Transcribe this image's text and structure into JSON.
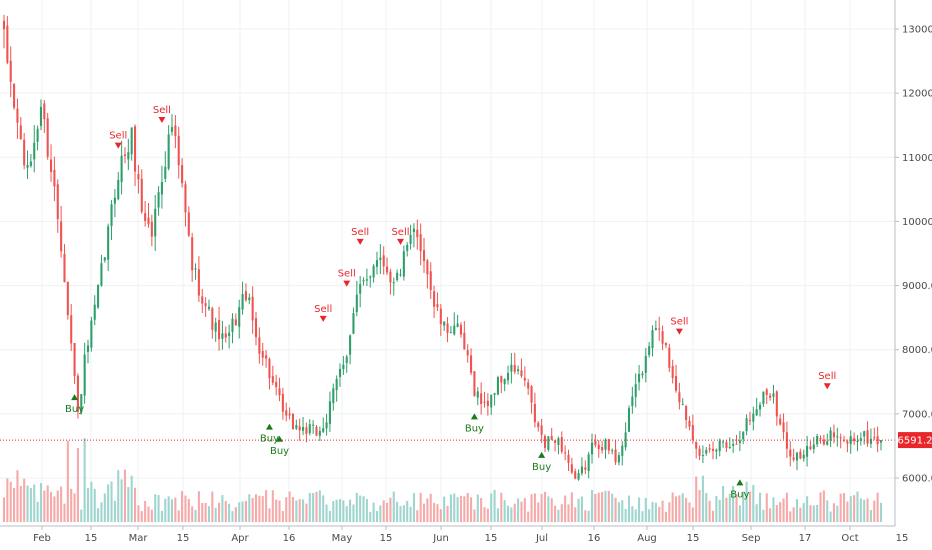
{
  "colors": {
    "up": "#26a69a",
    "up_body": "#2e9e6a",
    "down": "#ef5350",
    "vol_up": "#9ed5cf",
    "vol_down": "#f5a9a8",
    "sell": "#e8272c",
    "buy": "#1b7a1b",
    "price_line": "#e8272c",
    "grid": "#eef0f3",
    "axis": "#b8bcc4"
  },
  "chart_data": {
    "type": "candlestick",
    "title": "",
    "xlabel": "",
    "ylabel": "",
    "ylim": [
      5500,
      13400
    ],
    "y_ticks": [
      "6000.0",
      "7000.0",
      "8000.0",
      "9000.0",
      "10000.0",
      "11000.0",
      "12000.0",
      "13000.0"
    ],
    "x_ticks": [
      "Feb",
      "15",
      "Mar",
      "15",
      "Apr",
      "16",
      "May",
      "15",
      "Jun",
      "15",
      "Jul",
      "16",
      "Aug",
      "15",
      "Sep",
      "17",
      "Oct",
      "15"
    ],
    "last_price": 6591.2,
    "last_price_label": "6591.2",
    "grid": true,
    "anchors": [
      [
        0,
        12800
      ],
      [
        4,
        11500
      ],
      [
        7,
        10700
      ],
      [
        11,
        11800
      ],
      [
        15,
        10500
      ],
      [
        18,
        9200
      ],
      [
        22,
        7000
      ],
      [
        24,
        7800
      ],
      [
        27,
        8600
      ],
      [
        30,
        9500
      ],
      [
        34,
        10800
      ],
      [
        38,
        11300
      ],
      [
        41,
        10200
      ],
      [
        44,
        9800
      ],
      [
        46,
        10500
      ],
      [
        50,
        11500
      ],
      [
        53,
        10500
      ],
      [
        56,
        9300
      ],
      [
        60,
        8700
      ],
      [
        63,
        8300
      ],
      [
        66,
        8100
      ],
      [
        69,
        8500
      ],
      [
        72,
        8900
      ],
      [
        75,
        8200
      ],
      [
        78,
        7800
      ],
      [
        81,
        7300
      ],
      [
        84,
        6900
      ],
      [
        87,
        6800
      ],
      [
        90,
        6750
      ],
      [
        93,
        6700
      ],
      [
        96,
        6900
      ],
      [
        99,
        7500
      ],
      [
        102,
        8000
      ],
      [
        105,
        8800
      ],
      [
        108,
        9100
      ],
      [
        111,
        9500
      ],
      [
        114,
        9300
      ],
      [
        116,
        9000
      ],
      [
        119,
        9400
      ],
      [
        122,
        9800
      ],
      [
        125,
        9500
      ],
      [
        128,
        8700
      ],
      [
        131,
        8300
      ],
      [
        134,
        8400
      ],
      [
        137,
        8000
      ],
      [
        140,
        7400
      ],
      [
        143,
        7100
      ],
      [
        146,
        7400
      ],
      [
        149,
        7600
      ],
      [
        152,
        7700
      ],
      [
        155,
        7500
      ],
      [
        158,
        6900
      ],
      [
        161,
        6500
      ],
      [
        164,
        6650
      ],
      [
        167,
        6400
      ],
      [
        170,
        5900
      ],
      [
        173,
        6200
      ],
      [
        176,
        6600
      ],
      [
        179,
        6500
      ],
      [
        182,
        6300
      ],
      [
        185,
        6700
      ],
      [
        188,
        7500
      ],
      [
        191,
        7800
      ],
      [
        193,
        8300
      ],
      [
        196,
        8200
      ],
      [
        199,
        7600
      ],
      [
        202,
        7100
      ],
      [
        205,
        6700
      ],
      [
        208,
        6300
      ],
      [
        211,
        6400
      ],
      [
        214,
        6600
      ],
      [
        217,
        6500
      ],
      [
        220,
        6800
      ],
      [
        223,
        7000
      ],
      [
        226,
        7300
      ],
      [
        229,
        7350
      ],
      [
        231,
        6800
      ],
      [
        234,
        6400
      ],
      [
        237,
        6350
      ],
      [
        240,
        6450
      ],
      [
        243,
        6600
      ],
      [
        246,
        6700
      ],
      [
        249,
        6550
      ],
      [
        252,
        6600
      ],
      [
        255,
        6650
      ],
      [
        258,
        6600
      ],
      [
        261,
        6591
      ]
    ],
    "n_bars": 262,
    "signals": [
      {
        "type": "Sell",
        "bar": 34,
        "price": 11150
      },
      {
        "type": "Sell",
        "bar": 47,
        "price": 11550
      },
      {
        "type": "Sell",
        "bar": 95,
        "price": 8450
      },
      {
        "type": "Sell",
        "bar": 102,
        "price": 9000
      },
      {
        "type": "Sell",
        "bar": 106,
        "price": 9650
      },
      {
        "type": "Sell",
        "bar": 118,
        "price": 9650
      },
      {
        "type": "Sell",
        "bar": 201,
        "price": 8250
      },
      {
        "type": "Sell",
        "bar": 245,
        "price": 7400
      },
      {
        "type": "Buy",
        "bar": 21,
        "price": 7230
      },
      {
        "type": "Buy",
        "bar": 79,
        "price": 6770
      },
      {
        "type": "Buy",
        "bar": 82,
        "price": 6580
      },
      {
        "type": "Buy",
        "bar": 140,
        "price": 6930
      },
      {
        "type": "Buy",
        "bar": 160,
        "price": 6330
      },
      {
        "type": "Buy",
        "bar": 219,
        "price": 5900
      }
    ]
  }
}
